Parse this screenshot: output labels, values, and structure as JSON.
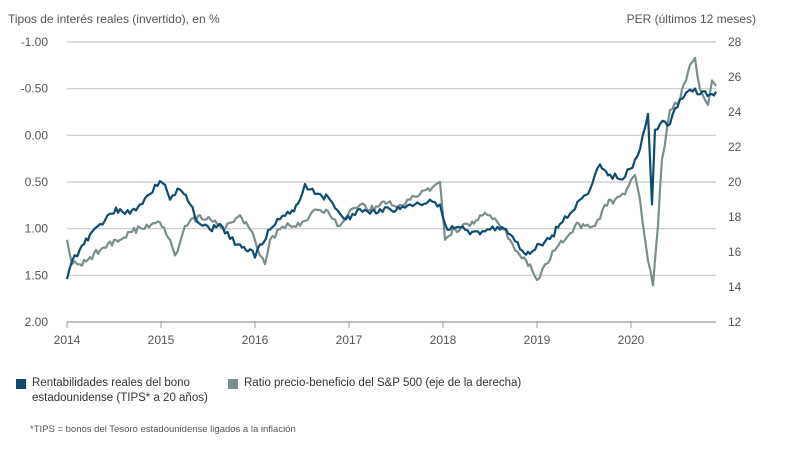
{
  "chart_data": {
    "type": "line",
    "left_axis_title": "Tipos de interés reales (invertido), en %",
    "right_axis_title": "PER (últimos 12 meses)",
    "left_ticks": [
      "-1.00",
      "-0.50",
      "0.00",
      "0.50",
      "1.00",
      "1.50",
      "2.00"
    ],
    "left_range": [
      -1.0,
      2.0
    ],
    "left_inverted": true,
    "right_ticks": [
      "28",
      "26",
      "24",
      "22",
      "20",
      "18",
      "16",
      "14",
      "12"
    ],
    "right_range": [
      12,
      28
    ],
    "x_ticks": [
      "2014",
      "2015",
      "2016",
      "2017",
      "2018",
      "2019",
      "2020"
    ],
    "x_range": [
      2014,
      2020.904
    ],
    "grid": true,
    "series": [
      {
        "name": "Rentabilidades reales del bono estadounidense (TIPS* a 20 años)",
        "axis": "left",
        "color": "#0f4c6e",
        "x": [
          2014.0,
          2014.053,
          2014.138,
          2014.245,
          2014.351,
          2014.457,
          2014.564,
          2014.67,
          2014.777,
          2014.883,
          2014.989,
          2015.043,
          2015.096,
          2015.202,
          2015.309,
          2015.415,
          2015.521,
          2015.628,
          2015.734,
          2015.84,
          2015.947,
          2016.0,
          2016.053,
          2016.16,
          2016.266,
          2016.372,
          2016.479,
          2016.532,
          2016.585,
          2016.691,
          2016.798,
          2016.904,
          2017.011,
          2017.117,
          2017.223,
          2017.33,
          2017.436,
          2017.543,
          2017.649,
          2017.755,
          2017.862,
          2017.968,
          2018.021,
          2018.074,
          2018.181,
          2018.287,
          2018.394,
          2018.5,
          2018.606,
          2018.713,
          2018.819,
          2018.926,
          2019.032,
          2019.138,
          2019.245,
          2019.351,
          2019.457,
          2019.564,
          2019.617,
          2019.67,
          2019.777,
          2019.883,
          2019.989,
          2020.043,
          2020.096,
          2020.181,
          2020.223,
          2020.255,
          2020.309,
          2020.415,
          2020.521,
          2020.628,
          2020.734,
          2020.84,
          2020.904
        ],
        "y": [
          1.54,
          1.35,
          1.22,
          1.06,
          0.95,
          0.84,
          0.79,
          0.84,
          0.74,
          0.63,
          0.49,
          0.53,
          0.69,
          0.58,
          0.74,
          0.95,
          1.01,
          0.95,
          1.11,
          1.17,
          1.22,
          1.31,
          1.17,
          1.01,
          0.9,
          0.84,
          0.69,
          0.52,
          0.58,
          0.63,
          0.69,
          0.84,
          0.9,
          0.79,
          0.84,
          0.79,
          0.79,
          0.79,
          0.74,
          0.74,
          0.69,
          0.74,
          0.95,
          1.01,
          0.99,
          1.06,
          1.06,
          1.01,
          1.01,
          1.06,
          1.22,
          1.27,
          1.17,
          1.11,
          0.95,
          0.84,
          0.69,
          0.58,
          0.42,
          0.31,
          0.42,
          0.47,
          0.36,
          0.26,
          0.15,
          -0.23,
          0.74,
          -0.06,
          -0.12,
          -0.12,
          -0.39,
          -0.49,
          -0.44,
          -0.44,
          -0.47
        ]
      },
      {
        "name": "Ratio precio-beneficio del S&P 500 (eje de la derecha)",
        "axis": "right",
        "color": "#7a8e8e",
        "x": [
          2014.0,
          2014.053,
          2014.138,
          2014.351,
          2014.564,
          2014.777,
          2014.989,
          2015.096,
          2015.149,
          2015.255,
          2015.415,
          2015.574,
          2015.681,
          2015.84,
          2015.947,
          2016.053,
          2016.106,
          2016.16,
          2016.266,
          2016.372,
          2016.479,
          2016.585,
          2016.691,
          2016.798,
          2016.904,
          2017.011,
          2017.117,
          2017.223,
          2017.33,
          2017.543,
          2017.649,
          2017.755,
          2017.862,
          2017.968,
          2018.021,
          2018.128,
          2018.287,
          2018.394,
          2018.5,
          2018.606,
          2018.713,
          2018.819,
          2018.926,
          2019.0,
          2019.085,
          2019.191,
          2019.298,
          2019.404,
          2019.511,
          2019.617,
          2019.723,
          2019.83,
          2019.936,
          2020.043,
          2020.096,
          2020.181,
          2020.234,
          2020.287,
          2020.33,
          2020.415,
          2020.521,
          2020.628,
          2020.681,
          2020.734,
          2020.819,
          2020.862,
          2020.904
        ],
        "y": [
          16.7,
          15.3,
          15.3,
          16.1,
          16.7,
          17.4,
          17.7,
          16.7,
          15.8,
          17.5,
          18.1,
          17.8,
          17.3,
          18.1,
          17.3,
          15.8,
          15.3,
          16.7,
          17.3,
          17.5,
          17.5,
          18.1,
          18.4,
          18.1,
          17.5,
          18.4,
          18.7,
          18.4,
          18.7,
          18.7,
          19.0,
          19.3,
          19.5,
          20.0,
          16.7,
          17.3,
          17.5,
          18.1,
          18.1,
          17.5,
          16.7,
          15.8,
          15.3,
          14.4,
          15.3,
          16.1,
          16.7,
          17.5,
          17.5,
          17.5,
          18.7,
          19.0,
          19.3,
          20.4,
          19.0,
          15.5,
          14.1,
          17.5,
          21.3,
          24.1,
          24.7,
          26.7,
          27.1,
          25.3,
          24.4,
          25.8,
          25.5
        ]
      }
    ],
    "legend": [
      {
        "line1": "Rentabilidades reales del bono",
        "line2": "estadounidense (TIPS* a 20 años)"
      },
      {
        "line1": "Ratio precio-beneficio del S&P 500 (eje de la derecha)"
      }
    ],
    "legend_placement": "bottom",
    "footnote": "*TIPS = bonos del Tesoro estadounidense ligados a la inflación"
  }
}
